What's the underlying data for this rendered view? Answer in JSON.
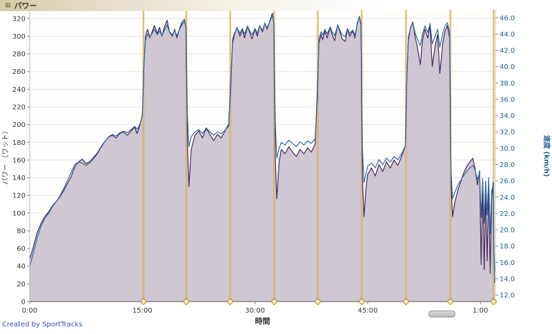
{
  "panel": {
    "title": "パワー"
  },
  "credit": {
    "text": "Created by SportTracks"
  },
  "colors": {
    "header_left": "#d6c9a6",
    "power_line": "#40265c",
    "power_fill": "#cfc7d2",
    "speed_line": "#2f6aa0",
    "lap_marker": "#c79833",
    "right_axis_text": "#1f5fa0",
    "credit_link": "#2a52be"
  },
  "chart_data": {
    "type": "area",
    "title": "パワー",
    "xlabel": "時間",
    "grid": true,
    "grid_color": "#e5e5e5",
    "x_range_minutes": [
      0,
      62
    ],
    "x_ticks": [
      {
        "minutes": 0,
        "label": "0:00"
      },
      {
        "minutes": 15,
        "label": "15:00"
      },
      {
        "minutes": 30,
        "label": "30:00"
      },
      {
        "minutes": 45,
        "label": "45:00"
      },
      {
        "minutes": 60,
        "label": "1:00"
      }
    ],
    "left_axis": {
      "label": "パワー （ワット）",
      "range": [
        0,
        330
      ],
      "ticks": [
        0,
        20,
        40,
        60,
        80,
        100,
        120,
        140,
        160,
        180,
        200,
        220,
        240,
        260,
        280,
        300,
        320
      ],
      "color": "#333333"
    },
    "right_axis": {
      "label": "速度 (km/h)",
      "range": [
        11.2,
        47.0
      ],
      "ticks": [
        12,
        14,
        16,
        18,
        20,
        22,
        24,
        26,
        28,
        30,
        32,
        34,
        36,
        38,
        40,
        42,
        44,
        46
      ],
      "color": "#1f5fa0"
    },
    "lap_markers_minutes": [
      15.15,
      20.85,
      26.7,
      32.55,
      38.35,
      44.2,
      50.1,
      56.0,
      61.75
    ],
    "lap_marker_color": "#c79833",
    "t_minutes": [
      0,
      0.5,
      1,
      1.5,
      2,
      2.5,
      3,
      3.5,
      4,
      4.5,
      5,
      5.5,
      6,
      6.5,
      7,
      7.5,
      8,
      8.5,
      9,
      9.5,
      10,
      10.5,
      11,
      11.5,
      12,
      12.5,
      13,
      13.5,
      14,
      14.3,
      14.7,
      15,
      15.2,
      15.4,
      15.7,
      16,
      16.3,
      16.6,
      17,
      17.3,
      17.6,
      18,
      18.3,
      18.6,
      19,
      19.3,
      19.6,
      20,
      20.3,
      20.6,
      20.8,
      21,
      21.2,
      21.5,
      22,
      22.5,
      23,
      23.5,
      24,
      24.5,
      25,
      25.5,
      26,
      26.5,
      26.8,
      27,
      27.3,
      27.6,
      28,
      28.3,
      28.6,
      29,
      29.3,
      29.6,
      30,
      30.3,
      30.6,
      31,
      31.3,
      31.6,
      32,
      32.3,
      32.5,
      32.7,
      32.9,
      33.2,
      33.5,
      34,
      34.5,
      35,
      35.5,
      36,
      36.5,
      37,
      37.5,
      38,
      38.3,
      38.5,
      38.8,
      39,
      39.3,
      39.6,
      40,
      40.3,
      40.6,
      41,
      41.3,
      41.6,
      42,
      42.3,
      42.6,
      43,
      43.3,
      43.6,
      43.9,
      44.1,
      44.3,
      44.5,
      44.8,
      45,
      45.5,
      46,
      46.5,
      47,
      47.5,
      48,
      48.5,
      49,
      49.5,
      50,
      50.2,
      50.4,
      50.7,
      51,
      51.3,
      51.6,
      52,
      52.3,
      52.6,
      53,
      53.3,
      53.6,
      54,
      54.3,
      54.6,
      55,
      55.3,
      55.6,
      55.9,
      56.1,
      56.3,
      56.6,
      57,
      57.4,
      57.8,
      58.2,
      58.6,
      59,
      59.3,
      59.6,
      59.9,
      60.1,
      60.3,
      60.5,
      60.7,
      60.9,
      61.1,
      61.3,
      61.5,
      61.7,
      61.8,
      61.9
    ],
    "series": [
      {
        "name": "パワー",
        "axis": "left",
        "unit": "ワット",
        "line_color": "#40265c",
        "fill_color": "#cfc7d2",
        "values": [
          48,
          62,
          78,
          88,
          96,
          101,
          108,
          113,
          118,
          125,
          133,
          141,
          152,
          158,
          161,
          156,
          158,
          163,
          168,
          175,
          181,
          186,
          188,
          185,
          190,
          192,
          188,
          193,
          197,
          190,
          200,
          211,
          265,
          300,
          308,
          298,
          305,
          312,
          303,
          310,
          300,
          312,
          318,
          305,
          300,
          308,
          298,
          310,
          316,
          319,
          310,
          180,
          130,
          172,
          188,
          193,
          185,
          196,
          189,
          182,
          189,
          185,
          193,
          201,
          255,
          292,
          303,
          310,
          300,
          308,
          298,
          311,
          304,
          297,
          308,
          300,
          312,
          305,
          315,
          308,
          318,
          326,
          315,
          160,
          116,
          158,
          172,
          167,
          175,
          169,
          164,
          172,
          167,
          174,
          169,
          178,
          240,
          292,
          302,
          296,
          306,
          298,
          310,
          301,
          295,
          313,
          305,
          297,
          294,
          308,
          300,
          306,
          298,
          315,
          322,
          312,
          140,
          96,
          130,
          144,
          151,
          142,
          155,
          147,
          158,
          151,
          160,
          154,
          164,
          176,
          250,
          295,
          310,
          316,
          300,
          288,
          268,
          296,
          308,
          298,
          312,
          266,
          290,
          302,
          258,
          293,
          306,
          312,
          298,
          130,
          96,
          112,
          126,
          136,
          146,
          153,
          158,
          162,
          150,
          132,
          148,
          42,
          128,
          36,
          124,
          46,
          134,
          32,
          118,
          135,
          60,
          34
        ]
      },
      {
        "name": "速度",
        "axis": "right",
        "unit": "km/h",
        "line_color": "#2f6aa0",
        "values": [
          15.5,
          17.2,
          19,
          20.4,
          21.4,
          22,
          22.8,
          23.4,
          24.1,
          25,
          26,
          27,
          28,
          28.3,
          28.2,
          27.9,
          28.2,
          28.7,
          29.3,
          30.1,
          30.8,
          31.4,
          31.7,
          31.5,
          31.9,
          32.1,
          31.9,
          32.3,
          32.7,
          32.3,
          33,
          34,
          40,
          43.2,
          44,
          43.6,
          44.1,
          44.6,
          43.9,
          44.4,
          43.8,
          44.6,
          45.1,
          44.3,
          43.9,
          44.5,
          43.8,
          44.7,
          45.2,
          45.5,
          44.9,
          34,
          30.2,
          31.4,
          32,
          32.3,
          31.8,
          32.5,
          32,
          31.6,
          32,
          31.8,
          32.2,
          32.7,
          38,
          43.4,
          44.2,
          44.8,
          44.1,
          44.7,
          44,
          45,
          44.4,
          43.9,
          44.7,
          44.1,
          45,
          44.5,
          45.3,
          44.8,
          45.6,
          46.3,
          45.4,
          33,
          28.8,
          30,
          30.7,
          30.4,
          31,
          30.6,
          30.2,
          30.8,
          30.4,
          30.9,
          30.6,
          31.2,
          36,
          43.5,
          44.3,
          43.9,
          44.6,
          44,
          44.9,
          44.2,
          43.8,
          45.1,
          44.5,
          43.9,
          43.7,
          44.7,
          44.1,
          44.5,
          43.9,
          45.2,
          46.2,
          45.3,
          30,
          25.8,
          27,
          27.8,
          28.2,
          27.6,
          28.6,
          28,
          28.8,
          28.3,
          29,
          28.6,
          29.3,
          30.3,
          38,
          43.6,
          44.8,
          45.4,
          44.2,
          43.4,
          42.6,
          44,
          45,
          44.2,
          45.3,
          42.8,
          43.8,
          44.6,
          42.4,
          44.1,
          45,
          45.4,
          44.3,
          27,
          23.8,
          24.6,
          25.5,
          26.1,
          26.7,
          27.2,
          27.6,
          27.9,
          27.3,
          26.2,
          27,
          21.5,
          26.3,
          20.8,
          26,
          21.8,
          26.4,
          19.5,
          24.8,
          25.5,
          17,
          13.5
        ]
      }
    ]
  }
}
